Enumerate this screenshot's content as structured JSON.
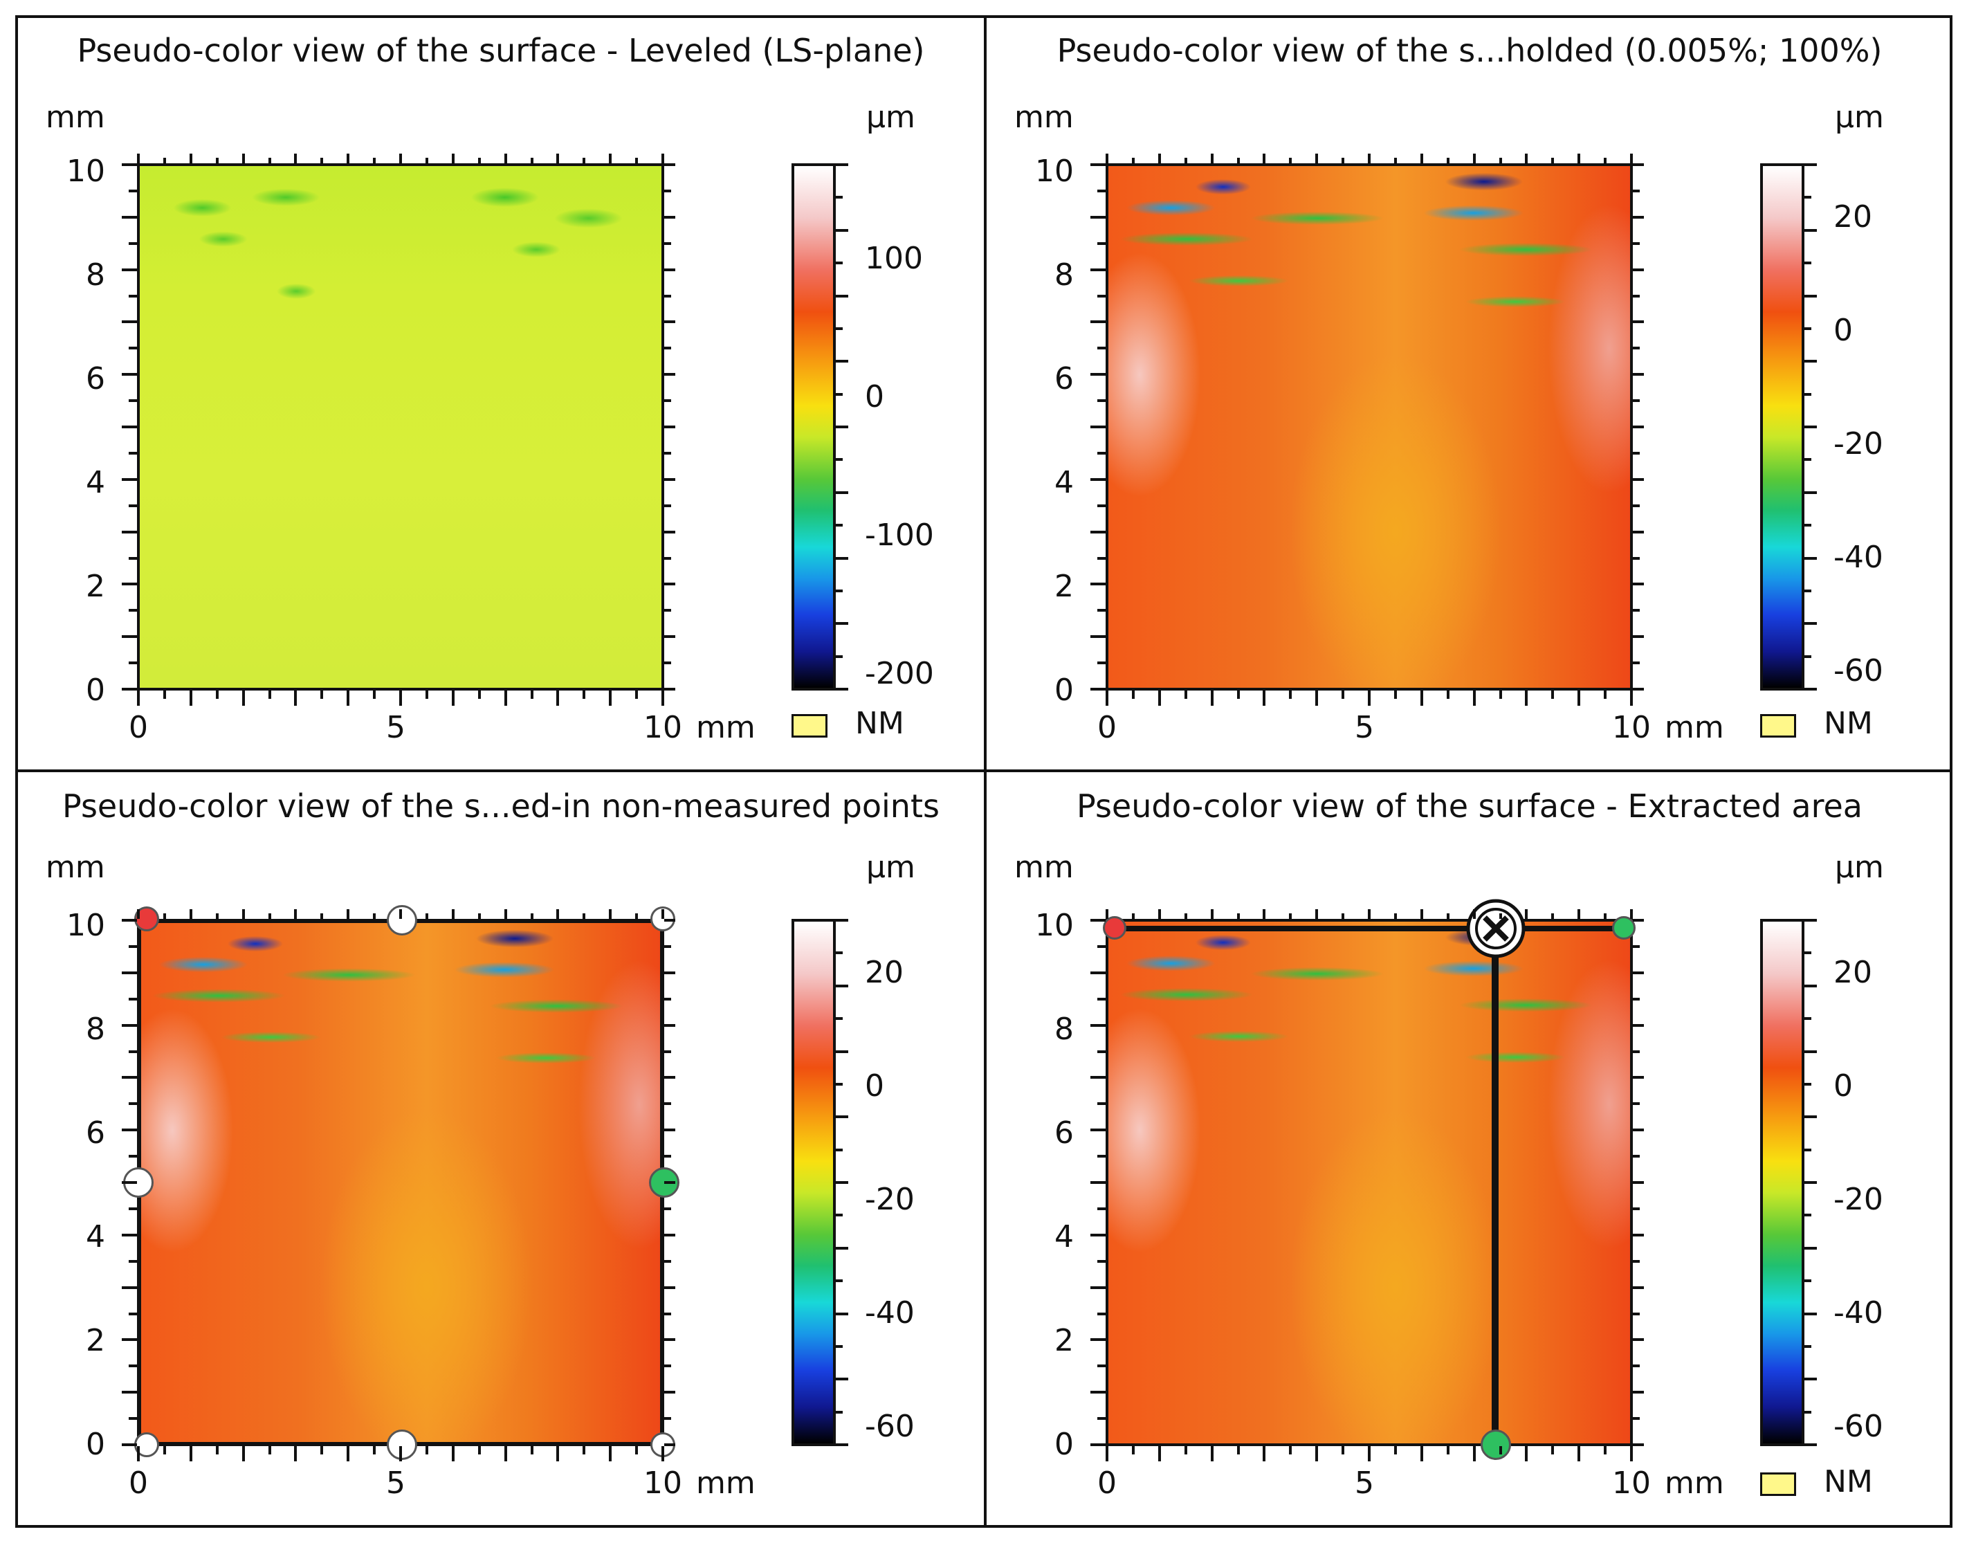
{
  "colors": {
    "frame": "#111111",
    "nm_fill": "#fff88a",
    "handle_white": "#ffffff",
    "handle_red": "#e83a3a",
    "handle_green": "#2ec060"
  },
  "panels": [
    {
      "title": "Pseudo-color view of the surface - Leveled (LS-plane)",
      "y_unit": "mm",
      "x_unit": "mm",
      "z_unit": "µm",
      "y_ticks": [
        "10",
        "8",
        "6",
        "4",
        "2",
        "0"
      ],
      "x_ticks": [
        "0",
        "5",
        "10"
      ],
      "cbar_ticks": [
        "100",
        "0",
        "-100",
        "-200"
      ],
      "nm_label": "NM"
    },
    {
      "title": "Pseudo-color view of the s...holded (0.005%; 100%)",
      "y_unit": "mm",
      "x_unit": "mm",
      "z_unit": "µm",
      "y_ticks": [
        "10",
        "8",
        "6",
        "4",
        "2",
        "0"
      ],
      "x_ticks": [
        "0",
        "5",
        "10"
      ],
      "cbar_ticks": [
        "20",
        "0",
        "-20",
        "-40",
        "-60"
      ],
      "nm_label": "NM"
    },
    {
      "title": "Pseudo-color view of the s...ed-in non-measured points",
      "y_unit": "mm",
      "x_unit": "mm",
      "z_unit": "µm",
      "y_ticks": [
        "10",
        "8",
        "6",
        "4",
        "2",
        "0"
      ],
      "x_ticks": [
        "0",
        "5",
        "10"
      ],
      "cbar_ticks": [
        "20",
        "0",
        "-20",
        "-40",
        "-60"
      ]
    },
    {
      "title": "Pseudo-color view of the surface - Extracted area",
      "y_unit": "mm",
      "x_unit": "mm",
      "z_unit": "µm",
      "y_ticks": [
        "10",
        "8",
        "6",
        "4",
        "2",
        "0"
      ],
      "x_ticks": [
        "0",
        "5",
        "10"
      ],
      "cbar_ticks": [
        "20",
        "0",
        "-20",
        "-40",
        "-60"
      ],
      "nm_label": "NM"
    }
  ]
}
